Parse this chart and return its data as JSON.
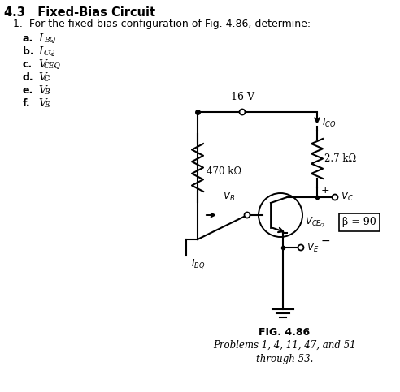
{
  "title": "4.3   Fixed-Bias Circuit",
  "problem_text": "1.  For the fixed-bias configuration of Fig. 4.86, determine:",
  "items": [
    [
      "a.",
      "I",
      "BQ"
    ],
    [
      "b.",
      "I",
      "CQ"
    ],
    [
      "c.",
      "V",
      "CEQ"
    ],
    [
      "d.",
      "V",
      "C"
    ],
    [
      "e.",
      "V",
      "B"
    ],
    [
      "f.",
      "V",
      "E"
    ]
  ],
  "fig_label": "FIG. 4.86",
  "fig_caption": "Problems 1, 4, 11, 47, and 51\nthrough 53.",
  "bg_color": "#ffffff",
  "text_color": "#000000",
  "voltage_source": "16 V",
  "r1_label": "470 kΩ",
  "r2_label": "2.7 kΩ",
  "beta_label": "β = 90"
}
